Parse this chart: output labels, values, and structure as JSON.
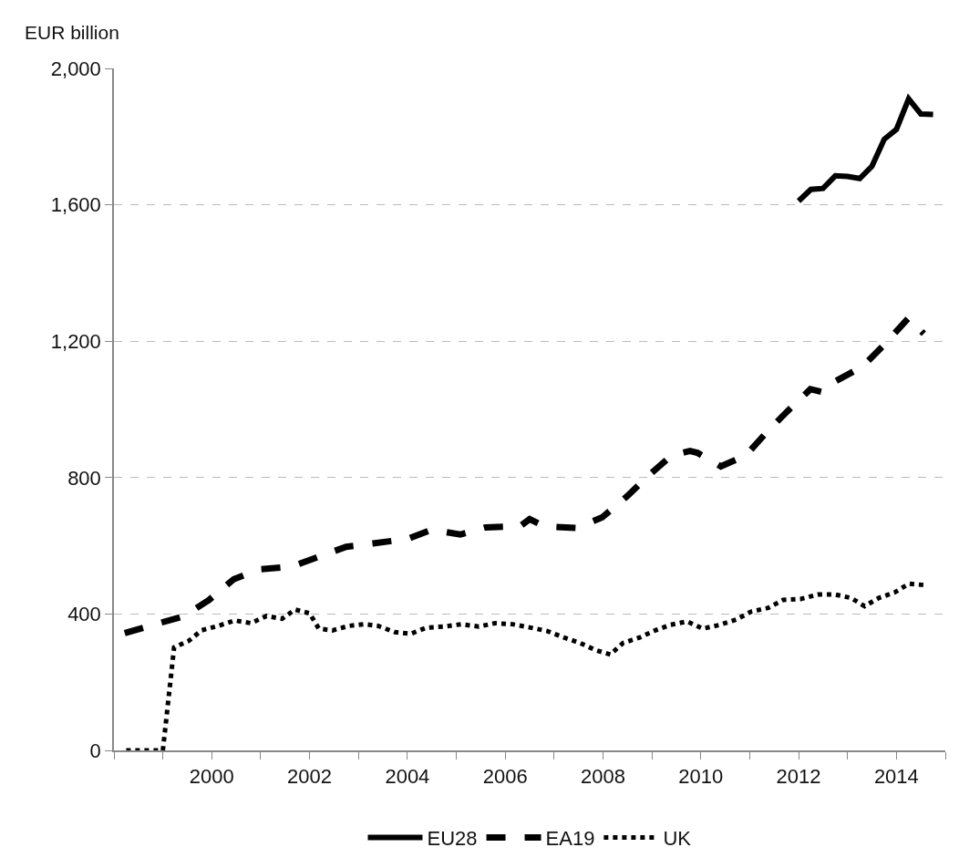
{
  "chart_data": {
    "type": "line",
    "ylabel": "EUR billion",
    "xlim": [
      1998,
      2015
    ],
    "ylim": [
      0,
      2000
    ],
    "xticks": [
      {
        "value": 1998,
        "label": null
      },
      {
        "value": 1999,
        "label": null
      },
      2000,
      {
        "value": 2001,
        "label": null
      },
      2002,
      {
        "value": 2003,
        "label": null
      },
      2004,
      {
        "value": 2005,
        "label": null
      },
      2006,
      {
        "value": 2007,
        "label": null
      },
      2008,
      {
        "value": 2009,
        "label": null
      },
      2010,
      {
        "value": 2011,
        "label": null
      },
      2012,
      {
        "value": 2013,
        "label": null
      },
      2014,
      {
        "value": 2015,
        "label": null
      }
    ],
    "yticks": [
      0,
      {
        "value": 400,
        "label": "400"
      },
      {
        "value": 800,
        "label": "800"
      },
      {
        "value": 1200,
        "label": "1,200"
      },
      {
        "value": 1600,
        "label": "1,600"
      },
      {
        "value": 2000,
        "label": "2,000"
      }
    ],
    "grid": "y",
    "legend": "bottom",
    "marker": "none",
    "series": [
      {
        "name": "EU28",
        "color": "#000000",
        "line_style": "solid",
        "x": [
          2012.0,
          2012.25,
          2012.5,
          2012.75,
          2013.0,
          2013.25,
          2013.5,
          2013.75,
          2014.0,
          2014.25,
          2014.5,
          2014.75
        ],
        "values": [
          1611,
          1645,
          1648,
          1685,
          1683,
          1677,
          1713,
          1792,
          1821,
          1911,
          1866,
          1865
        ]
      },
      {
        "name": "EA19",
        "color": "#000000",
        "line_style": "dashed",
        "x": [
          1998.22,
          1998.8,
          1999.44,
          1999.94,
          2000.45,
          2000.97,
          2001.63,
          2002.13,
          2002.75,
          2003.3,
          2004.0,
          2004.49,
          2005.08,
          2005.6,
          2006.3,
          2006.5,
          2006.8,
          2007.46,
          2007.98,
          2008.5,
          2008.88,
          2009.4,
          2009.78,
          2009.94,
          2010.41,
          2010.92,
          2011.36,
          2011.76,
          2012.24,
          2012.49,
          2012.76,
          2013.3,
          2013.72,
          2014.24,
          2014.56
        ],
        "values": [
          344,
          368,
          394,
          441,
          502,
          531,
          539,
          565,
          597,
          607,
          620,
          647,
          633,
          654,
          657,
          678,
          657,
          652,
          683,
          746,
          799,
          865,
          878,
          872,
          833,
          865,
          935,
          993,
          1059,
          1051,
          1083,
          1125,
          1185,
          1267,
          1222
        ]
      },
      {
        "name": "UK",
        "color": "#000000",
        "line_style": "dotted",
        "x": [
          1998.25,
          1998.5,
          1998.75,
          1999.0,
          1999.23,
          1999.53,
          1999.79,
          2000.13,
          2000.47,
          2000.8,
          2001.12,
          2001.44,
          2001.7,
          2002.0,
          2002.19,
          2002.47,
          2002.8,
          2003.12,
          2003.4,
          2003.74,
          2004.07,
          2004.39,
          2004.75,
          2005.1,
          2005.46,
          2005.79,
          2006.15,
          2006.52,
          2006.86,
          2007.2,
          2007.53,
          2007.85,
          2008.15,
          2008.41,
          2008.75,
          2009.07,
          2009.38,
          2009.72,
          2010.04,
          2010.39,
          2010.73,
          2011.03,
          2011.38,
          2011.68,
          2012.04,
          2012.39,
          2012.75,
          2013.07,
          2013.35,
          2013.64,
          2013.96,
          2014.26,
          2014.62
        ],
        "values": [
          0,
          0,
          0,
          0,
          302,
          321,
          352,
          365,
          381,
          373,
          394,
          386,
          413,
          402,
          357,
          352,
          365,
          370,
          365,
          347,
          342,
          360,
          363,
          370,
          363,
          373,
          370,
          360,
          350,
          331,
          315,
          294,
          281,
          315,
          331,
          352,
          368,
          378,
          357,
          368,
          384,
          407,
          418,
          441,
          444,
          457,
          457,
          447,
          423,
          447,
          463,
          489,
          484
        ]
      }
    ]
  }
}
